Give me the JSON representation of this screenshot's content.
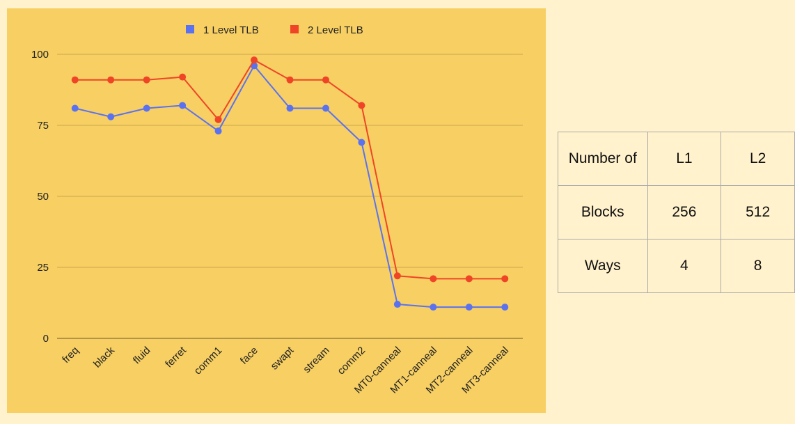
{
  "chart_data": {
    "type": "line",
    "categories": [
      "freq",
      "black",
      "fluid",
      "ferret",
      "comm1",
      "face",
      "swapt",
      "stream",
      "comm2",
      "MT0-canneal",
      "MT1-canneal",
      "MT2-canneal",
      "MT3-canneal"
    ],
    "series": [
      {
        "name": "1 Level TLB",
        "color": "#5b72f0",
        "values": [
          81,
          78,
          81,
          82,
          73,
          96,
          81,
          81,
          69,
          12,
          11,
          11,
          11
        ]
      },
      {
        "name": "2 Level TLB",
        "color": "#ef4526",
        "values": [
          91,
          91,
          91,
          92,
          77,
          98,
          91,
          91,
          82,
          22,
          21,
          21,
          21
        ]
      }
    ],
    "yticks": [
      0,
      25,
      50,
      75,
      100
    ],
    "ylim": [
      0,
      100
    ],
    "grid": true,
    "legend": "top-center",
    "background": "#f7cf63",
    "gridline_color": "#c9a74e"
  },
  "table": {
    "header": [
      "Number of",
      "L1",
      "L2"
    ],
    "rows": [
      [
        "Blocks",
        "256",
        "512"
      ],
      [
        "Ways",
        "4",
        "8"
      ]
    ]
  }
}
